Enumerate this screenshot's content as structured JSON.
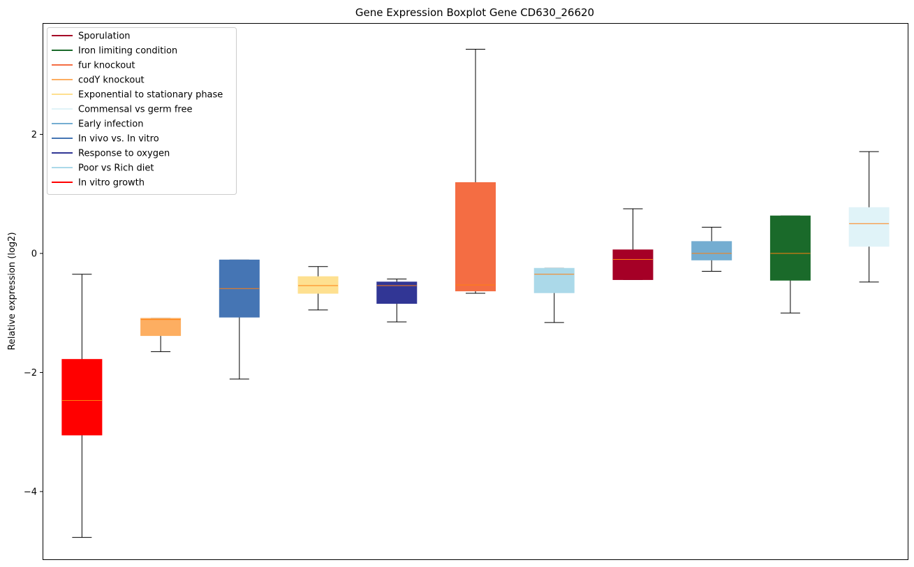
{
  "chart_data": {
    "type": "boxplot",
    "title": "Gene Expression Boxplot Gene CD630_26620",
    "xlabel": "",
    "ylabel": "Relative expression (log2)",
    "ylim": [
      -5.15,
      3.87
    ],
    "yticks": [
      -4,
      -2,
      0,
      2
    ],
    "ytick_labels": [
      "−4",
      "−2",
      "0",
      "2"
    ],
    "grid": false,
    "legend_position": "top-left",
    "legend": [
      {
        "label": "Sporulation",
        "color": "#a50026"
      },
      {
        "label": "Iron limiting condition",
        "color": "#1a6a2a"
      },
      {
        "label": "fur knockout",
        "color": "#f46d43"
      },
      {
        "label": "codY knockout",
        "color": "#fdae61"
      },
      {
        "label": "Exponential to stationary phase",
        "color": "#fee090"
      },
      {
        "label": "Commensal vs germ free",
        "color": "#e0f3f8"
      },
      {
        "label": "Early infection",
        "color": "#74add1"
      },
      {
        "label": "In vivo vs. In vitro",
        "color": "#4575b4"
      },
      {
        "label": "Response to oxygen",
        "color": "#313695"
      },
      {
        "label": "Poor vs Rich diet",
        "color": "#abd9e9"
      },
      {
        "label": "In vitro growth",
        "color": "#ff0000"
      }
    ],
    "median_color": "#ff7f0e",
    "boxes": [
      {
        "name": "In vitro growth",
        "color": "#ff0000",
        "whislo": -4.77,
        "q1": -3.05,
        "med": -2.47,
        "q3": -1.78,
        "whishi": -0.35
      },
      {
        "name": "codY knockout",
        "color": "#fdae61",
        "whislo": -1.65,
        "q1": -1.38,
        "med": -1.11,
        "q3": -1.09,
        "whishi": -1.09
      },
      {
        "name": "In vivo vs. In vitro",
        "color": "#4575b4",
        "whislo": -2.11,
        "q1": -1.07,
        "med": -0.59,
        "q3": -0.11,
        "whishi": -0.11
      },
      {
        "name": "Exponential to stationary phase",
        "color": "#fee090",
        "whislo": -0.95,
        "q1": -0.67,
        "med": -0.54,
        "q3": -0.39,
        "whishi": -0.22
      },
      {
        "name": "Response to oxygen",
        "color": "#313695",
        "whislo": -1.15,
        "q1": -0.84,
        "med": -0.54,
        "q3": -0.48,
        "whishi": -0.43
      },
      {
        "name": "fur knockout",
        "color": "#f46d43",
        "whislo": -0.67,
        "q1": -0.63,
        "med": -0.53,
        "q3": 1.19,
        "whishi": 3.43
      },
      {
        "name": "Poor vs Rich diet",
        "color": "#abd9e9",
        "whislo": -1.16,
        "q1": -0.66,
        "med": -0.35,
        "q3": -0.25,
        "whishi": -0.25
      },
      {
        "name": "Sporulation",
        "color": "#a50026",
        "whislo": -0.44,
        "q1": -0.44,
        "med": -0.1,
        "q3": 0.06,
        "whishi": 0.75
      },
      {
        "name": "Early infection",
        "color": "#74add1",
        "whislo": -0.3,
        "q1": -0.11,
        "med": 0.0,
        "q3": 0.2,
        "whishi": 0.44
      },
      {
        "name": "Iron limiting condition",
        "color": "#1a6a2a",
        "whislo": -1.0,
        "q1": -0.45,
        "med": 0.0,
        "q3": 0.63,
        "whishi": 0.63
      },
      {
        "name": "Commensal vs germ free",
        "color": "#e0f3f8",
        "whislo": -0.48,
        "q1": 0.12,
        "med": 0.5,
        "q3": 0.77,
        "whishi": 1.71
      }
    ]
  }
}
